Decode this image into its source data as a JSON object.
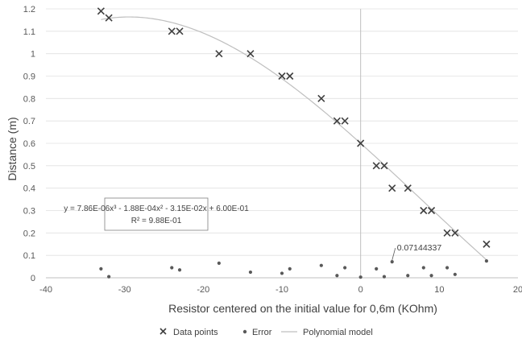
{
  "chart_data": {
    "type": "scatter",
    "xlabel": "Resistor centered on the initial value for 0,6m (KOhm)",
    "ylabel": "Distance (m)",
    "xlim": [
      -40,
      20
    ],
    "ylim": [
      0,
      1.2
    ],
    "x_ticks": [
      -40,
      -30,
      -20,
      -10,
      0,
      10,
      20
    ],
    "y_ticks": [
      0,
      0.1,
      0.2,
      0.3,
      0.4,
      0.5,
      0.6,
      0.7,
      0.8,
      0.9,
      1,
      1.1,
      1.2
    ],
    "x_tick_labels": [
      "-40",
      "-30",
      "-20",
      "-10",
      "0",
      "10",
      "20"
    ],
    "y_tick_labels": [
      "0",
      "0.1",
      "0.2",
      "0.3",
      "0.4",
      "0.5",
      "0.6",
      "0.7",
      "0.8",
      "0.9",
      "1",
      "1.1",
      "1.2"
    ],
    "grid": "horizontal",
    "legend_position": "bottom",
    "series": [
      {
        "name": "Data points",
        "marker": "x",
        "color": "#404040",
        "points": [
          [
            -33,
            1.19
          ],
          [
            -32,
            1.16
          ],
          [
            -24,
            1.1
          ],
          [
            -23,
            1.1
          ],
          [
            -18,
            1.0
          ],
          [
            -14,
            1.0
          ],
          [
            -10,
            0.9
          ],
          [
            -9,
            0.9
          ],
          [
            -5,
            0.8
          ],
          [
            -3,
            0.7
          ],
          [
            -2,
            0.7
          ],
          [
            0,
            0.6
          ],
          [
            2,
            0.5
          ],
          [
            3,
            0.5
          ],
          [
            4,
            0.4
          ],
          [
            6,
            0.4
          ],
          [
            8,
            0.3
          ],
          [
            9,
            0.3
          ],
          [
            11,
            0.2
          ],
          [
            12,
            0.2
          ],
          [
            16,
            0.15
          ]
        ]
      },
      {
        "name": "Error",
        "marker": "dot",
        "color": "#595959",
        "points": [
          [
            -33,
            0.04
          ],
          [
            -32,
            0.005
          ],
          [
            -24,
            0.045
          ],
          [
            -23,
            0.035
          ],
          [
            -18,
            0.065
          ],
          [
            -14,
            0.025
          ],
          [
            -10,
            0.02
          ],
          [
            -9,
            0.04
          ],
          [
            -5,
            0.055
          ],
          [
            -3,
            0.01
          ],
          [
            -2,
            0.045
          ],
          [
            0,
            0.003
          ],
          [
            2,
            0.04
          ],
          [
            3,
            0.005
          ],
          [
            4,
            0.0714
          ],
          [
            6,
            0.01
          ],
          [
            8,
            0.045
          ],
          [
            9,
            0.01
          ],
          [
            11,
            0.045
          ],
          [
            12,
            0.015
          ],
          [
            16,
            0.075
          ]
        ]
      },
      {
        "name": "Polynomial model",
        "type": "line",
        "color": "#bfbfbf",
        "coefficients": [
          0.6,
          -0.0315,
          -0.000188,
          7.86e-06
        ],
        "x_range": [
          -33,
          16
        ]
      }
    ],
    "annotations": [
      {
        "text": "0.07144337",
        "x": 4,
        "y": 0.0714
      }
    ],
    "trendline_label": {
      "equation": "y = 7.86E-06x³ - 1.88E-04x² - 3.15E-02x + 6.00E-01",
      "r_squared": "R² = 9.88E-01"
    }
  }
}
